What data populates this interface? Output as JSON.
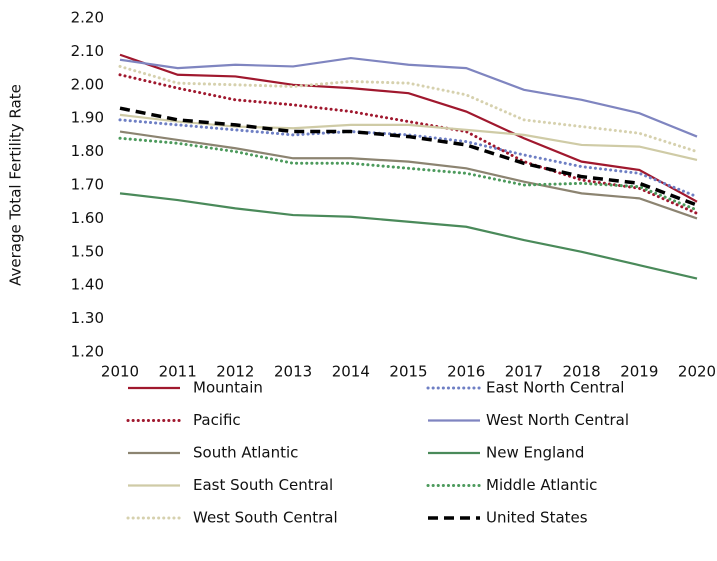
{
  "chart_data": {
    "type": "line",
    "y_label": "Average Total Fertility Rate",
    "categories": [
      "2010",
      "2011",
      "2012",
      "2013",
      "2014",
      "2015",
      "2016",
      "2017",
      "2018",
      "2019",
      "2020"
    ],
    "ylim": [
      1.2,
      2.2
    ],
    "yticks": [
      {
        "value": 1.2,
        "label": "1.20"
      },
      {
        "value": 1.3,
        "label": "1.30"
      },
      {
        "value": 1.4,
        "label": "1.40"
      },
      {
        "value": 1.5,
        "label": "1.50"
      },
      {
        "value": 1.6,
        "label": "1.60"
      },
      {
        "value": 1.7,
        "label": "1.70"
      },
      {
        "value": 1.8,
        "label": "1.80"
      },
      {
        "value": 1.9,
        "label": "1.90"
      },
      {
        "value": 2.0,
        "label": "2.00"
      },
      {
        "value": 2.1,
        "label": "2.10"
      },
      {
        "value": 2.2,
        "label": "2.20"
      }
    ],
    "grid": false,
    "legend": "bottom",
    "series": [
      {
        "name": "Mountain",
        "color": "#a0182e",
        "dash": "solid",
        "values": [
          2.09,
          2.03,
          2.025,
          2.0,
          1.99,
          1.975,
          1.92,
          1.84,
          1.77,
          1.745,
          1.65
        ]
      },
      {
        "name": "East North Central",
        "color": "#6e7fc4",
        "dash": "dotted",
        "values": [
          1.895,
          1.88,
          1.865,
          1.85,
          1.86,
          1.85,
          1.83,
          1.79,
          1.755,
          1.735,
          1.665
        ]
      },
      {
        "name": "Pacific",
        "color": "#a0182e",
        "dash": "dotted",
        "values": [
          2.03,
          1.99,
          1.955,
          1.94,
          1.92,
          1.89,
          1.86,
          1.77,
          1.715,
          1.69,
          1.615
        ]
      },
      {
        "name": "West North Central",
        "color": "#7f85c0",
        "dash": "solid",
        "values": [
          2.075,
          2.05,
          2.06,
          2.055,
          2.08,
          2.06,
          2.05,
          1.985,
          1.955,
          1.915,
          1.845
        ]
      },
      {
        "name": "South Atlantic",
        "color": "#8c8471",
        "dash": "solid",
        "values": [
          1.86,
          1.835,
          1.81,
          1.78,
          1.78,
          1.77,
          1.75,
          1.71,
          1.675,
          1.66,
          1.6
        ]
      },
      {
        "name": "New England",
        "color": "#4a8a5a",
        "dash": "solid",
        "values": [
          1.675,
          1.655,
          1.63,
          1.61,
          1.605,
          1.59,
          1.575,
          1.535,
          1.5,
          1.46,
          1.42
        ]
      },
      {
        "name": "East South Central",
        "color": "#cfcba6",
        "dash": "solid",
        "values": [
          1.91,
          1.89,
          1.875,
          1.87,
          1.88,
          1.88,
          1.865,
          1.85,
          1.82,
          1.815,
          1.775
        ]
      },
      {
        "name": "Middle Atlantic",
        "color": "#4c9a5c",
        "dash": "dotted",
        "values": [
          1.84,
          1.825,
          1.8,
          1.765,
          1.765,
          1.75,
          1.735,
          1.7,
          1.705,
          1.695,
          1.625
        ]
      },
      {
        "name": "West South Central",
        "color": "#d6d1ae",
        "dash": "dotted",
        "values": [
          2.055,
          2.005,
          2.0,
          1.995,
          2.01,
          2.005,
          1.97,
          1.895,
          1.875,
          1.855,
          1.8
        ]
      },
      {
        "name": "United States",
        "color": "#000000",
        "dash": "dashed",
        "values": [
          1.93,
          1.895,
          1.88,
          1.86,
          1.86,
          1.845,
          1.82,
          1.765,
          1.725,
          1.705,
          1.64
        ]
      }
    ]
  }
}
